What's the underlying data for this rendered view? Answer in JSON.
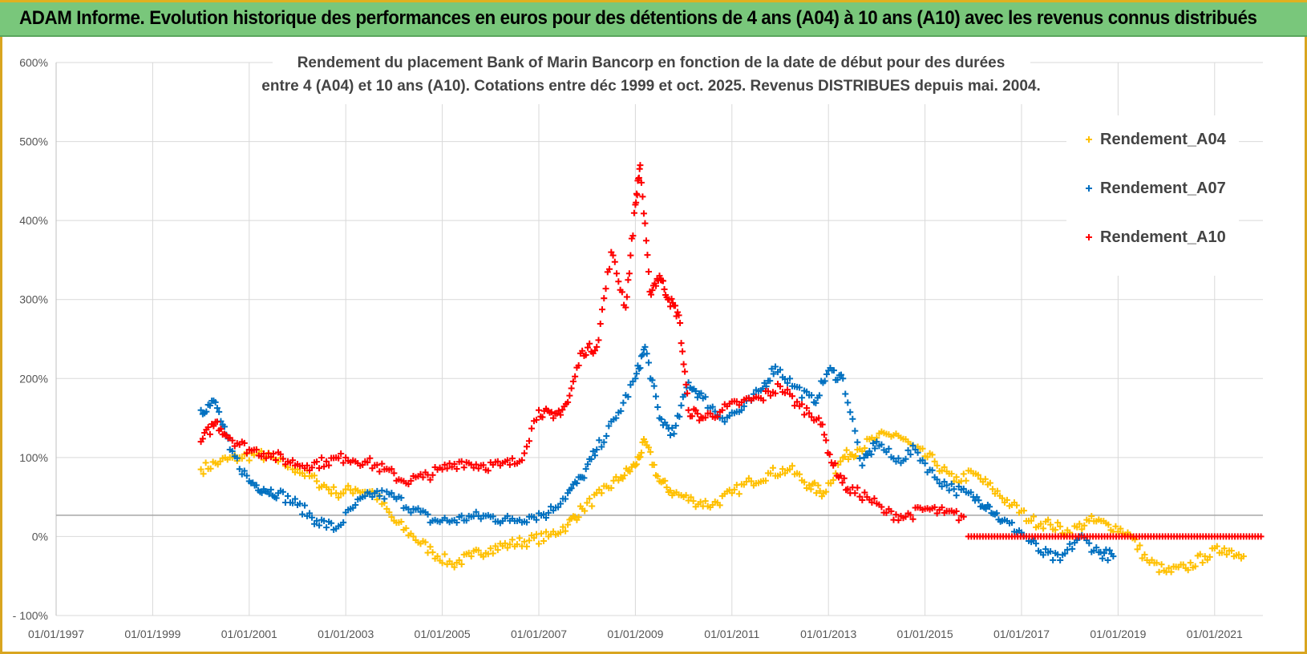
{
  "header": {
    "title": "ADAM Informe. Evolution historique des performances en euros pour des détentions de 4 ans (A04) à 10 ans (A10) avec les revenus connus distribués"
  },
  "colors": {
    "banner": "#79c77b",
    "frame": "#d9a520",
    "grid": "#d9d9d9",
    "A04": "#ffc000",
    "A07": "#0070c0",
    "A10": "#ff0000"
  },
  "chart_data": {
    "type": "scatter",
    "title_lines": [
      "Rendement du placement Bank of Marin Bancorp en fonction de la date de début pour des durées",
      "entre 4 (A04) et 10 ans (A10). Cotations entre déc 1999 et oct. 2025. Revenus DISTRIBUES depuis mai. 2004."
    ],
    "xlabel": "",
    "ylabel": "",
    "xlim": [
      1997.0,
      2022.0
    ],
    "ylim": [
      -100,
      600
    ],
    "yticks": [
      -100,
      0,
      100,
      200,
      300,
      400,
      500,
      600
    ],
    "ytick_labels": [
      "- 100%",
      "0%",
      "100%",
      "200%",
      "300%",
      "400%",
      "500%",
      "600%"
    ],
    "xticks": [
      1997,
      1999,
      2001,
      2003,
      2005,
      2007,
      2009,
      2011,
      2013,
      2015,
      2017,
      2019,
      2021
    ],
    "xtick_labels": [
      "01/01/1997",
      "01/01/1999",
      "01/01/2001",
      "01/01/2003",
      "01/01/2005",
      "01/01/2007",
      "01/01/2009",
      "01/01/2011",
      "01/01/2013",
      "01/01/2015",
      "01/01/2017",
      "01/01/2019",
      "01/01/2021"
    ],
    "reference_line_y": 27,
    "legend_position": "right",
    "series": [
      {
        "name": "Rendement_A04",
        "color": "#ffc000",
        "x": [
          2000.0,
          2000.4,
          2000.8,
          2001.2,
          2001.6,
          2002.0,
          2002.4,
          2002.8,
          2003.2,
          2003.6,
          2004.0,
          2004.4,
          2004.8,
          2005.2,
          2005.6,
          2006.0,
          2006.4,
          2006.8,
          2007.2,
          2007.6,
          2007.9,
          2008.3,
          2008.7,
          2009.0,
          2009.2,
          2009.5,
          2009.8,
          2010.2,
          2010.6,
          2011.0,
          2011.4,
          2011.8,
          2012.2,
          2012.6,
          2012.9,
          2013.3,
          2013.6,
          2014.0,
          2014.4,
          2014.8,
          2015.2,
          2015.6,
          2016.0,
          2016.4,
          2016.8,
          2017.2,
          2017.6,
          2018.0,
          2018.4,
          2018.8,
          2019.2,
          2019.6,
          2020.0,
          2020.4,
          2020.8,
          2021.2,
          2021.6
        ],
        "y": [
          85,
          95,
          100,
          105,
          95,
          85,
          70,
          55,
          60,
          55,
          20,
          0,
          -20,
          -35,
          -25,
          -15,
          -10,
          -5,
          0,
          15,
          35,
          55,
          75,
          90,
          120,
          70,
          55,
          45,
          40,
          55,
          70,
          80,
          85,
          65,
          55,
          100,
          110,
          125,
          130,
          110,
          95,
          70,
          80,
          60,
          40,
          20,
          15,
          5,
          20,
          15,
          5,
          -30,
          -45,
          -40,
          -25,
          -15,
          -25
        ]
      },
      {
        "name": "Rendement_A07",
        "color": "#0070c0",
        "x": [
          2000.0,
          2000.3,
          2000.6,
          2001.0,
          2001.3,
          2001.6,
          2002.0,
          2002.4,
          2002.8,
          2003.2,
          2003.6,
          2004.0,
          2004.4,
          2004.8,
          2005.2,
          2005.6,
          2006.0,
          2006.4,
          2006.8,
          2007.2,
          2007.6,
          2007.9,
          2008.2,
          2008.6,
          2009.0,
          2009.2,
          2009.5,
          2009.8,
          2010.1,
          2010.4,
          2010.8,
          2011.2,
          2011.6,
          2011.9,
          2012.3,
          2012.7,
          2013.0,
          2013.3,
          2013.7,
          2014.0,
          2014.4,
          2014.8,
          2015.2,
          2015.6,
          2016.0,
          2016.3,
          2016.6,
          2017.0,
          2017.4,
          2017.8,
          2018.2,
          2018.6,
          2018.9
        ],
        "y": [
          160,
          170,
          110,
          70,
          60,
          55,
          40,
          20,
          10,
          40,
          55,
          50,
          35,
          20,
          20,
          25,
          25,
          20,
          25,
          30,
          55,
          75,
          110,
          150,
          200,
          240,
          150,
          130,
          195,
          175,
          150,
          160,
          185,
          215,
          190,
          170,
          210,
          200,
          90,
          120,
          95,
          110,
          75,
          60,
          50,
          40,
          20,
          5,
          -20,
          -30,
          0,
          -20,
          -25
        ]
      },
      {
        "name": "Rendement_A10",
        "color": "#ff0000",
        "x": [
          2000.0,
          2000.3,
          2000.6,
          2001.0,
          2001.4,
          2001.8,
          2002.2,
          2002.6,
          2003.0,
          2003.4,
          2003.8,
          2004.2,
          2004.6,
          2005.0,
          2005.4,
          2005.8,
          2006.2,
          2006.6,
          2007.0,
          2007.3,
          2007.6,
          2007.9,
          2008.2,
          2008.5,
          2008.8,
          2009.0,
          2009.1,
          2009.3,
          2009.5,
          2009.7,
          2009.9,
          2010.1,
          2010.4,
          2010.8,
          2011.2,
          2011.6,
          2012.0,
          2012.4,
          2012.8,
          2013.1,
          2013.4,
          2013.8,
          2014.2,
          2014.6,
          2015.0,
          2015.4,
          2015.8
        ],
        "y": [
          120,
          145,
          125,
          110,
          105,
          95,
          90,
          95,
          100,
          95,
          85,
          70,
          75,
          85,
          95,
          90,
          90,
          95,
          160,
          150,
          170,
          235,
          240,
          360,
          290,
          420,
          470,
          310,
          330,
          300,
          280,
          160,
          150,
          160,
          170,
          175,
          190,
          165,
          150,
          90,
          60,
          50,
          30,
          25,
          35,
          30,
          25
        ]
      }
    ],
    "flat_segment": {
      "series": "Rendement_A10",
      "x_start": 2015.9,
      "x_end": 2022.0,
      "y": 0
    }
  }
}
